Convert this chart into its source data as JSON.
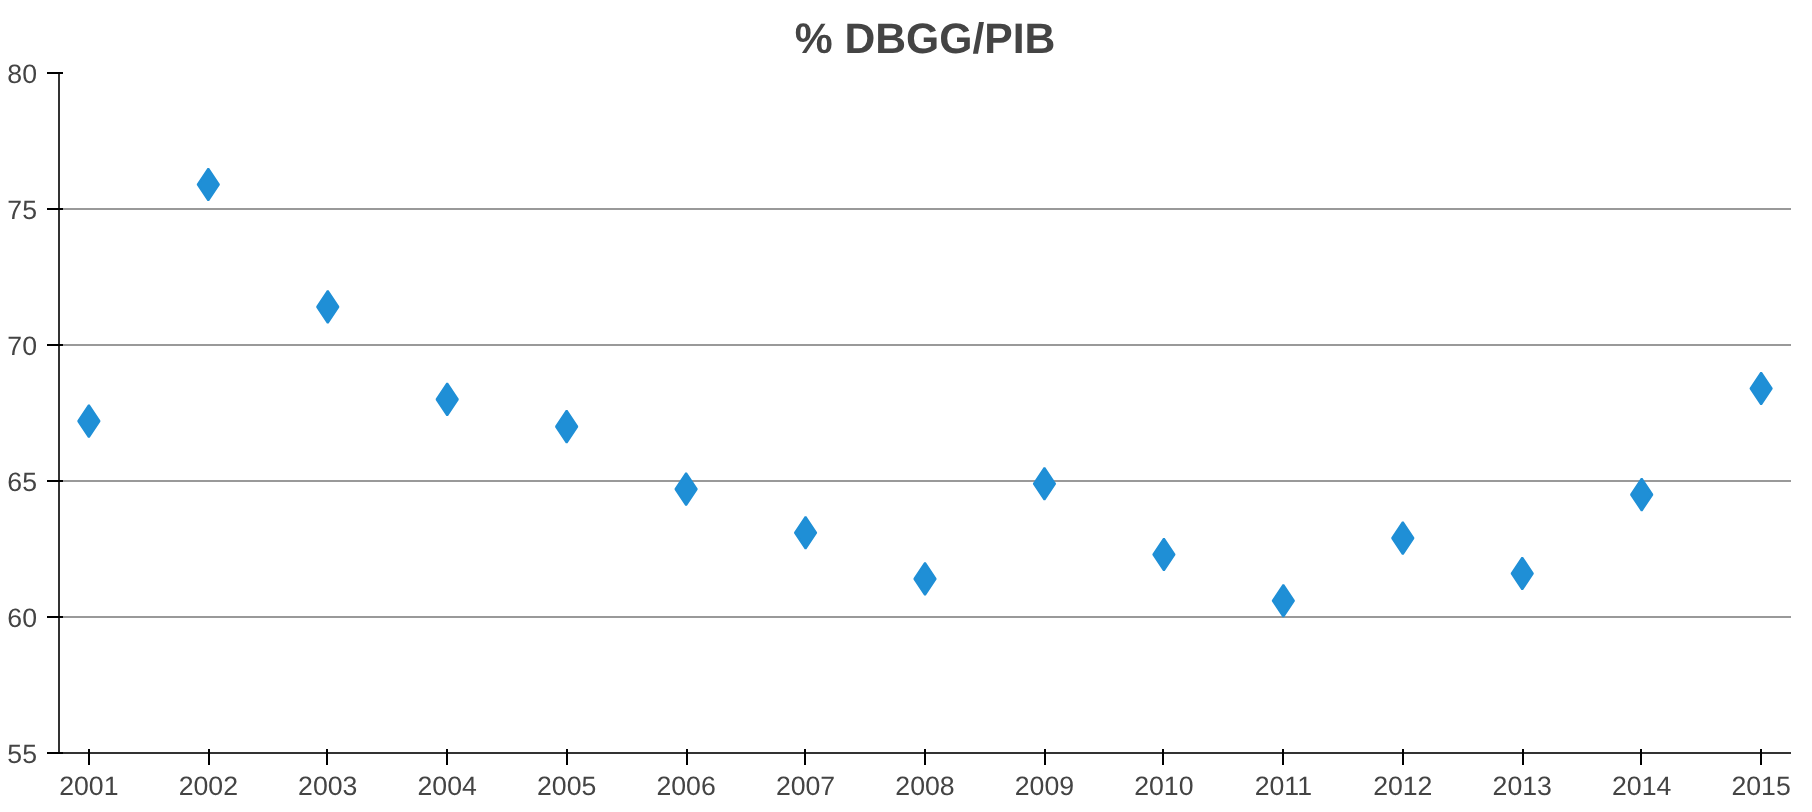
{
  "chart_data": {
    "type": "scatter",
    "title": "% DBGG/PIB",
    "categories": [
      "2001",
      "2002",
      "2003",
      "2004",
      "2005",
      "2006",
      "2007",
      "2008",
      "2009",
      "2010",
      "2011",
      "2012",
      "2013",
      "2014",
      "2015"
    ],
    "series": [
      {
        "color": "#1f8fd6",
        "values": [
          67.2,
          75.9,
          71.4,
          68.0,
          67.0,
          64.7,
          63.1,
          61.4,
          64.9,
          62.3,
          60.6,
          62.9,
          61.6,
          64.5,
          68.4
        ]
      }
    ],
    "ylim": [
      55,
      80
    ],
    "yticks": [
      55,
      60,
      65,
      70,
      75,
      80
    ],
    "grid": "y",
    "marker": "diamond"
  }
}
